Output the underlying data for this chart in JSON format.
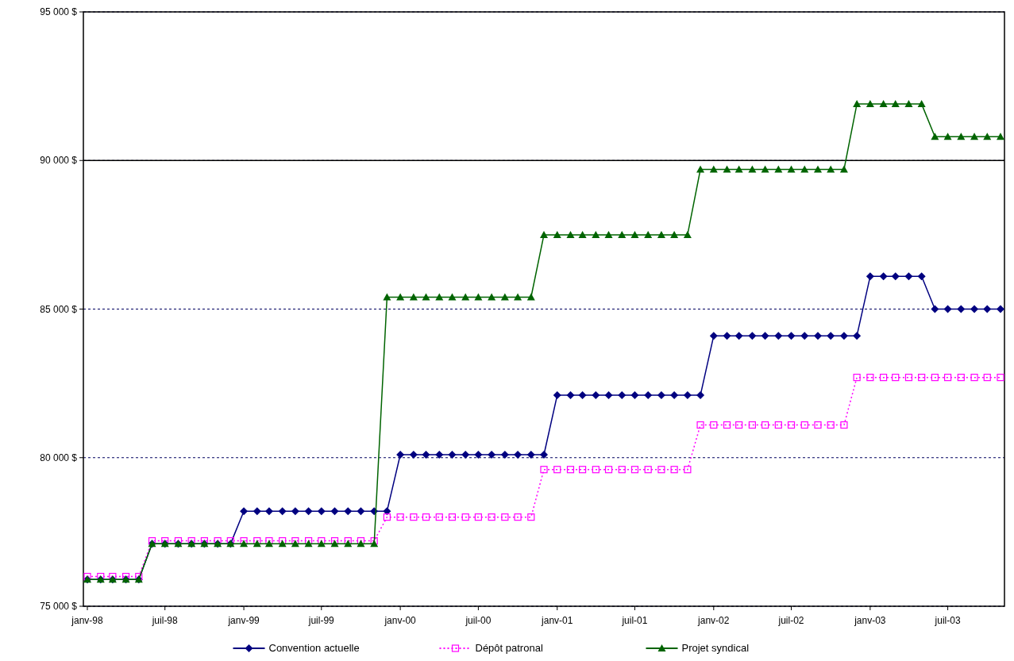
{
  "chart_data": {
    "type": "line",
    "x": [
      "1998-01",
      "1998-02",
      "1998-03",
      "1998-04",
      "1998-05",
      "1998-06",
      "1998-07",
      "1998-08",
      "1998-09",
      "1998-10",
      "1998-11",
      "1998-12",
      "1999-01",
      "1999-02",
      "1999-03",
      "1999-04",
      "1999-05",
      "1999-06",
      "1999-07",
      "1999-08",
      "1999-09",
      "1999-10",
      "1999-11",
      "1999-12",
      "2000-01",
      "2000-02",
      "2000-03",
      "2000-04",
      "2000-05",
      "2000-06",
      "2000-07",
      "2000-08",
      "2000-09",
      "2000-10",
      "2000-11",
      "2000-12",
      "2001-01",
      "2001-02",
      "2001-03",
      "2001-04",
      "2001-05",
      "2001-06",
      "2001-07",
      "2001-08",
      "2001-09",
      "2001-10",
      "2001-11",
      "2001-12",
      "2002-01",
      "2002-02",
      "2002-03",
      "2002-04",
      "2002-05",
      "2002-06",
      "2002-07",
      "2002-08",
      "2002-09",
      "2002-10",
      "2002-11",
      "2002-12",
      "2003-01",
      "2003-02",
      "2003-03",
      "2003-04",
      "2003-05",
      "2003-06",
      "2003-07",
      "2003-08",
      "2003-09",
      "2003-10",
      "2003-11"
    ],
    "series": [
      {
        "name": "Convention actuelle",
        "color": "#000080",
        "marker": "diamond",
        "line_style": "solid",
        "values": [
          75900,
          75900,
          75900,
          75900,
          75900,
          77100,
          77100,
          77100,
          77100,
          77100,
          77100,
          77100,
          78200,
          78200,
          78200,
          78200,
          78200,
          78200,
          78200,
          78200,
          78200,
          78200,
          78200,
          78200,
          80100,
          80100,
          80100,
          80100,
          80100,
          80100,
          80100,
          80100,
          80100,
          80100,
          80100,
          80100,
          82100,
          82100,
          82100,
          82100,
          82100,
          82100,
          82100,
          82100,
          82100,
          82100,
          82100,
          82100,
          84100,
          84100,
          84100,
          84100,
          84100,
          84100,
          84100,
          84100,
          84100,
          84100,
          84100,
          84100,
          86100,
          86100,
          86100,
          86100,
          86100,
          85000,
          85000,
          85000,
          85000,
          85000,
          85000
        ]
      },
      {
        "name": "Dépôt patronal",
        "color": "#ff00ff",
        "marker": "square",
        "line_style": "dotted",
        "values": [
          76000,
          76000,
          76000,
          76000,
          76000,
          77200,
          77200,
          77200,
          77200,
          77200,
          77200,
          77200,
          77200,
          77200,
          77200,
          77200,
          77200,
          77200,
          77200,
          77200,
          77200,
          77200,
          77200,
          78000,
          78000,
          78000,
          78000,
          78000,
          78000,
          78000,
          78000,
          78000,
          78000,
          78000,
          78000,
          79600,
          79600,
          79600,
          79600,
          79600,
          79600,
          79600,
          79600,
          79600,
          79600,
          79600,
          79600,
          81100,
          81100,
          81100,
          81100,
          81100,
          81100,
          81100,
          81100,
          81100,
          81100,
          81100,
          81100,
          82700,
          82700,
          82700,
          82700,
          82700,
          82700,
          82700,
          82700,
          82700,
          82700,
          82700,
          82700
        ]
      },
      {
        "name": "Projet syndical",
        "color": "#006400",
        "marker": "triangle",
        "line_style": "solid",
        "values": [
          75900,
          75900,
          75900,
          75900,
          75900,
          77100,
          77100,
          77100,
          77100,
          77100,
          77100,
          77100,
          77100,
          77100,
          77100,
          77100,
          77100,
          77100,
          77100,
          77100,
          77100,
          77100,
          77100,
          85400,
          85400,
          85400,
          85400,
          85400,
          85400,
          85400,
          85400,
          85400,
          85400,
          85400,
          85400,
          87500,
          87500,
          87500,
          87500,
          87500,
          87500,
          87500,
          87500,
          87500,
          87500,
          87500,
          87500,
          89700,
          89700,
          89700,
          89700,
          89700,
          89700,
          89700,
          89700,
          89700,
          89700,
          89700,
          89700,
          91900,
          91900,
          91900,
          91900,
          91900,
          91900,
          90800,
          90800,
          90800,
          90800,
          90800,
          90800
        ]
      }
    ],
    "xlim": [
      "1998-01",
      "2003-11"
    ],
    "xticks": [
      {
        "value": "1998-01",
        "label": "janv-98"
      },
      {
        "value": "1998-07",
        "label": "juil-98"
      },
      {
        "value": "1999-01",
        "label": "janv-99"
      },
      {
        "value": "1999-07",
        "label": "juil-99"
      },
      {
        "value": "2000-01",
        "label": "janv-00"
      },
      {
        "value": "2000-07",
        "label": "juil-00"
      },
      {
        "value": "2001-01",
        "label": "janv-01"
      },
      {
        "value": "2001-07",
        "label": "juil-01"
      },
      {
        "value": "2002-01",
        "label": "janv-02"
      },
      {
        "value": "2002-07",
        "label": "juil-02"
      },
      {
        "value": "2003-01",
        "label": "janv-03"
      },
      {
        "value": "2003-07",
        "label": "juil-03"
      }
    ],
    "ylim": [
      75000,
      95000
    ],
    "yticks": [
      {
        "value": 75000,
        "label": "75 000 $"
      },
      {
        "value": 80000,
        "label": "80 000 $"
      },
      {
        "value": 85000,
        "label": "85 000 $"
      },
      {
        "value": 90000,
        "label": "90 000 $"
      },
      {
        "value": 95000,
        "label": "95 000 $"
      }
    ],
    "grid": "y",
    "ref_lines": [
      {
        "axis": "y",
        "value": 90000,
        "color": "#000000",
        "line_style": "solid"
      }
    ],
    "legend": "bottom"
  }
}
